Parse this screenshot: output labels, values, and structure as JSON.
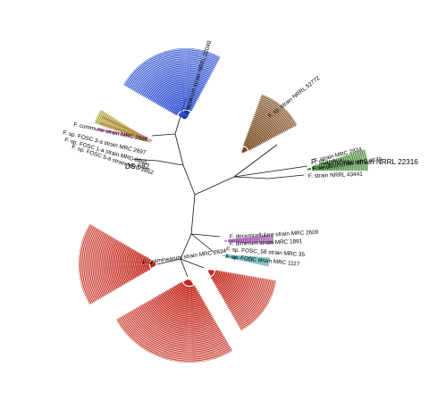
{
  "colors": {
    "blue": "#2c4fd0",
    "brown": "#7a4a1e",
    "green": "#2e7a1e",
    "olive": "#a8a32a",
    "magenta": "#e23ad8",
    "purple": "#8a2a9a",
    "teal": "#2a9a9a",
    "red": "#c42a1e",
    "black": "#111111"
  },
  "labels": {
    "blue_main": "F. thapsinum strain NRRL 22049",
    "magenta": "F. commune strain MRC 2886",
    "olive_1": "F. sp. FOSC 3-a strain MRC 2897",
    "olive_2": "F. sp. FOSC 1-a strain MRC 8865",
    "olive_3": "F. sp. FOSC 5-a strain MRC 2852",
    "ds682": "DS 682",
    "staphyleae": "F. staphyleae strain NRRL 22316",
    "green_1": "F. strain MRC 2834",
    "green_2": "F. nelsonii strain MRC 4570",
    "green_3": "F. strain NRRL 43441",
    "purple_1": "F. decemcellulare strain MRC 2609",
    "purple_2": "F. dimerum strain MRC 1891",
    "teal_1": "F. sp. FOSC_58 strain MRC 35",
    "teal_2": "F. sp. FOSC strain MRC 1117",
    "red_main": "F. graminearum strain MRC 2834",
    "brown_main": "F. sp. strain NRRL 52772"
  }
}
